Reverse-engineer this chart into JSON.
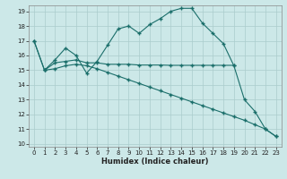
{
  "xlabel": "Humidex (Indice chaleur)",
  "bg_color": "#cce8e8",
  "grid_color": "#aacccc",
  "line_color": "#1a6e6a",
  "xlim": [
    -0.5,
    23.5
  ],
  "ylim": [
    9.8,
    19.4
  ],
  "xticks": [
    0,
    1,
    2,
    3,
    4,
    5,
    6,
    7,
    8,
    9,
    10,
    11,
    12,
    13,
    14,
    15,
    16,
    17,
    18,
    19,
    20,
    21,
    22,
    23
  ],
  "yticks": [
    10,
    11,
    12,
    13,
    14,
    15,
    16,
    17,
    18,
    19
  ],
  "line1_x": [
    0,
    1,
    2,
    3,
    4,
    5,
    6,
    7,
    8,
    9,
    10,
    11,
    12,
    13,
    14,
    15,
    16,
    17,
    18,
    19,
    20,
    21,
    22,
    23
  ],
  "line1_y": [
    17.0,
    15.0,
    15.7,
    16.5,
    16.0,
    14.8,
    15.6,
    16.7,
    17.8,
    18.0,
    17.5,
    18.1,
    18.5,
    19.0,
    19.2,
    19.2,
    18.2,
    17.5,
    16.8,
    15.3,
    13.0,
    12.2,
    11.0,
    10.5
  ],
  "line2_x": [
    1,
    2,
    3,
    4,
    5,
    6,
    7,
    8,
    9,
    10,
    11,
    12,
    13,
    14,
    15,
    16,
    17,
    18,
    19
  ],
  "line2_y": [
    15.0,
    15.5,
    15.6,
    15.7,
    15.5,
    15.5,
    15.4,
    15.4,
    15.4,
    15.35,
    15.35,
    15.35,
    15.33,
    15.33,
    15.33,
    15.33,
    15.33,
    15.33,
    15.33
  ],
  "line3_x": [
    0,
    1,
    2,
    3,
    4,
    5,
    6,
    7,
    8,
    9,
    10,
    11,
    12,
    13,
    14,
    15,
    16,
    17,
    18,
    19,
    20,
    21,
    22,
    23
  ],
  "line3_y": [
    17.0,
    15.0,
    15.1,
    15.3,
    15.4,
    15.3,
    15.1,
    14.85,
    14.6,
    14.35,
    14.1,
    13.85,
    13.6,
    13.35,
    13.1,
    12.85,
    12.6,
    12.35,
    12.1,
    11.85,
    11.6,
    11.3,
    11.0,
    10.5
  ]
}
